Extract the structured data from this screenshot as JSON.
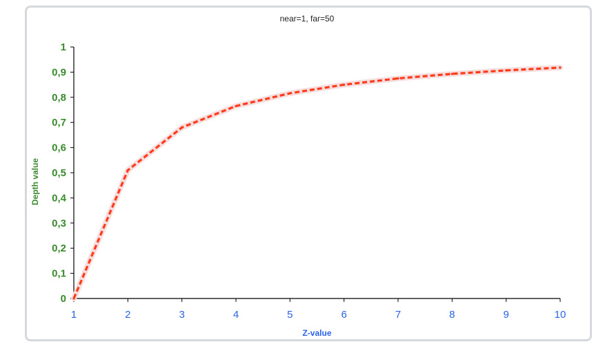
{
  "colors": {
    "y_axis_text": "#3a8a2e",
    "x_axis_text": "#2a62e8",
    "series": "#ff3a1a",
    "series_halo": "#f6dede",
    "frame_border": "#d5d9de",
    "axis_line": "#000000"
  },
  "chart_data": {
    "type": "line",
    "title": "near=1, far=50",
    "xlabel": "Z-value",
    "ylabel": "Depth value",
    "x": [
      1,
      2,
      3,
      4,
      5,
      6,
      7,
      8,
      9,
      10
    ],
    "series": [
      {
        "values": [
          0,
          0.51,
          0.68,
          0.765,
          0.816,
          0.85,
          0.875,
          0.893,
          0.907,
          0.918
        ]
      }
    ],
    "xlim": [
      1,
      10
    ],
    "ylim": [
      0,
      1
    ],
    "x_ticks": [
      "1",
      "2",
      "3",
      "4",
      "5",
      "6",
      "7",
      "8",
      "9",
      "10"
    ],
    "y_ticks": [
      "0",
      "0,1",
      "0,2",
      "0,3",
      "0,4",
      "0,5",
      "0,6",
      "0,7",
      "0,8",
      "0,9",
      "1"
    ],
    "grid": false,
    "legend": "none",
    "line_style": "dashed"
  }
}
